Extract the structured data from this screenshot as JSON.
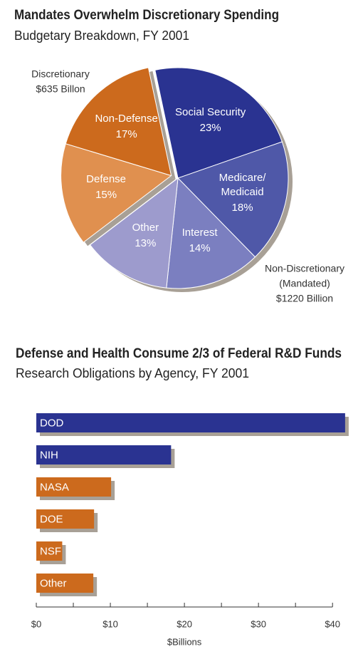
{
  "chart_data": [
    {
      "type": "pie",
      "title": "Mandates Overwhelm Discretionary Spending",
      "subtitle": "Budgetary Breakdown, FY 2001",
      "categories": [
        "Social Security",
        "Medicare/Medicaid",
        "Interest",
        "Other",
        "Defense",
        "Non-Defense"
      ],
      "values": [
        23,
        18,
        14,
        13,
        15,
        17
      ],
      "value_labels": [
        "23%",
        "18%",
        "14%",
        "13%",
        "15%",
        "17%"
      ],
      "colors": [
        "#2a3391",
        "#4f58a8",
        "#7b7fc0",
        "#9d9bcd",
        "#e0904f",
        "#cc6a1d"
      ],
      "explode": [
        false,
        false,
        false,
        false,
        true,
        true
      ],
      "annotations": [
        {
          "lines": [
            "Discretionary",
            "$635 Billon"
          ]
        },
        {
          "lines": [
            "Non-Discretionary",
            "(Mandated)",
            "$1220 Billion"
          ]
        }
      ]
    },
    {
      "type": "hbar",
      "title": "Defense and Health Consume 2/3 of Federal R&D Funds",
      "subtitle": "Research Obligations by Agency, FY 2001",
      "categories": [
        "DOD",
        "NIH",
        "NASA",
        "DOE",
        "NSF",
        "Other"
      ],
      "values": [
        41.7,
        18.2,
        10.1,
        7.8,
        3.5,
        7.7
      ],
      "colors": [
        "#2a3391",
        "#2a3391",
        "#cc6a1d",
        "#cc6a1d",
        "#cc6a1d",
        "#cc6a1d"
      ],
      "xlim": [
        0,
        42
      ],
      "xticks": [
        {
          "value": 0,
          "label": "$0"
        },
        {
          "value": 10,
          "label": "$10"
        },
        {
          "value": 20,
          "label": "$20"
        },
        {
          "value": 30,
          "label": "$30"
        },
        {
          "value": 40,
          "label": "$40"
        }
      ],
      "xminor_ticks": [
        5,
        15,
        25,
        35
      ],
      "xlabel": "$Billions"
    }
  ]
}
